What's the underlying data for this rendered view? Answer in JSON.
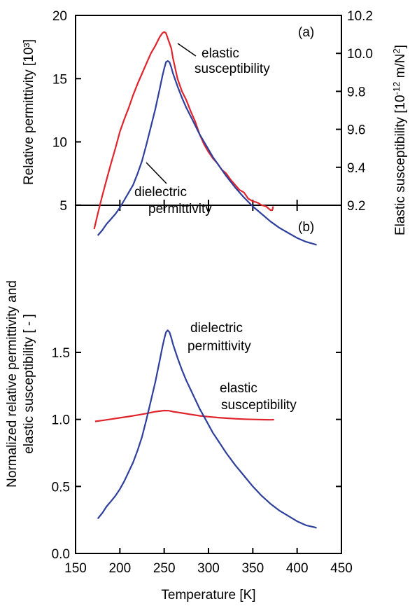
{
  "chart_data": [
    {
      "panel_label": "(a)",
      "type": "line",
      "ylabel_left": "Relative permittivity [10³]",
      "ylabel_right_parts": [
        "Elastic susceptibility [10",
        "-12",
        " m/N",
        "2",
        "]"
      ],
      "ylim_left": [
        0,
        20
      ],
      "ylim_right": [
        9.2,
        10.2
      ],
      "yticks_left": [
        "5",
        "10",
        "15",
        "20"
      ],
      "yticks_right": [
        "9.2",
        "9.4",
        "9.6",
        "9.8",
        "10.0",
        "10.2"
      ],
      "xlim": [
        150,
        450
      ],
      "annotations": [
        {
          "lines": [
            "elastic",
            "susceptibility"
          ]
        },
        {
          "lines": [
            "dielectric",
            "permittivity"
          ]
        }
      ],
      "series": [
        {
          "axis": "left",
          "color": "#e0242c",
          "x": [
            171,
            175,
            180,
            185,
            190,
            195,
            200,
            205,
            210,
            215,
            220,
            225,
            230,
            235,
            240,
            245,
            248,
            250,
            252,
            255,
            258,
            260,
            265,
            270,
            275,
            280,
            285,
            290,
            295,
            300,
            305,
            310,
            315,
            320,
            325,
            330,
            335,
            340,
            345,
            350,
            355,
            360,
            365,
            370,
            372,
            373
          ],
          "y": [
            3.1,
            4.3,
            5.7,
            7.0,
            8.3,
            9.5,
            10.8,
            11.8,
            12.7,
            13.7,
            14.6,
            15.4,
            16.2,
            17.0,
            17.6,
            18.3,
            18.6,
            18.7,
            18.6,
            18.0,
            17.4,
            16.6,
            15.0,
            14.0,
            13.3,
            12.4,
            11.6,
            10.6,
            9.8,
            9.2,
            8.7,
            8.3,
            7.8,
            7.5,
            7.0,
            6.6,
            6.2,
            6.0,
            5.5,
            5.3,
            5.2,
            5.0,
            4.9,
            4.6,
            4.6,
            4.9
          ]
        },
        {
          "axis": "left",
          "color": "#2e3f9c",
          "x": [
            175,
            180,
            185,
            190,
            195,
            200,
            205,
            210,
            215,
            220,
            225,
            230,
            235,
            240,
            245,
            248,
            250,
            252,
            254,
            256,
            258,
            260,
            265,
            270,
            275,
            280,
            285,
            290,
            295,
            300,
            305,
            310,
            320,
            330,
            340,
            350,
            360,
            370,
            380,
            390,
            400,
            410,
            420,
            422
          ],
          "y": [
            2.6,
            3.0,
            3.5,
            3.9,
            4.3,
            4.8,
            5.4,
            6.0,
            6.6,
            7.5,
            8.5,
            9.8,
            11.2,
            12.6,
            14.2,
            15.2,
            15.8,
            16.3,
            16.4,
            16.3,
            15.9,
            15.4,
            14.4,
            13.5,
            12.7,
            12.0,
            11.3,
            10.6,
            10.0,
            9.4,
            8.8,
            8.3,
            7.3,
            6.4,
            5.6,
            4.9,
            4.3,
            3.7,
            3.2,
            2.8,
            2.4,
            2.1,
            1.9,
            1.85
          ]
        }
      ]
    },
    {
      "panel_label": "(b)",
      "type": "line",
      "ylabel_lines": [
        "Normalized relative permittivity and",
        "elastic susceptibility [ - ]"
      ],
      "xlabel": "Temperature [K]",
      "xlim": [
        150,
        450
      ],
      "ylim": [
        0.0,
        2.0
      ],
      "xticks": [
        "150",
        "200",
        "250",
        "300",
        "350",
        "400",
        "450"
      ],
      "yticks": [
        "0.0",
        "0.5",
        "1.0",
        "1.5"
      ],
      "annotations": [
        {
          "lines": [
            "dielectric",
            "permittivity"
          ]
        },
        {
          "lines": [
            "elastic",
            "susceptibility"
          ]
        }
      ],
      "series": [
        {
          "color": "#e0242c",
          "x": [
            172,
            180,
            190,
            200,
            210,
            220,
            230,
            240,
            250,
            255,
            260,
            270,
            280,
            290,
            300,
            310,
            320,
            330,
            340,
            350,
            360,
            370,
            374
          ],
          "y": [
            0.985,
            0.992,
            1.002,
            1.012,
            1.022,
            1.033,
            1.044,
            1.058,
            1.066,
            1.065,
            1.058,
            1.048,
            1.037,
            1.027,
            1.02,
            1.014,
            1.009,
            1.005,
            1.002,
            1.0,
            0.998,
            0.997,
            0.998
          ]
        },
        {
          "color": "#2e3f9c",
          "x": [
            175,
            180,
            185,
            190,
            195,
            200,
            205,
            210,
            215,
            220,
            225,
            230,
            235,
            240,
            245,
            248,
            250,
            252,
            254,
            256,
            258,
            260,
            265,
            270,
            275,
            280,
            285,
            290,
            295,
            300,
            305,
            310,
            320,
            330,
            340,
            350,
            360,
            370,
            380,
            390,
            400,
            410,
            420,
            422
          ],
          "y": [
            0.26,
            0.3,
            0.35,
            0.39,
            0.43,
            0.48,
            0.54,
            0.61,
            0.68,
            0.77,
            0.87,
            1.0,
            1.14,
            1.28,
            1.44,
            1.54,
            1.6,
            1.65,
            1.665,
            1.65,
            1.61,
            1.56,
            1.46,
            1.37,
            1.29,
            1.22,
            1.15,
            1.08,
            1.02,
            0.96,
            0.9,
            0.85,
            0.75,
            0.66,
            0.58,
            0.5,
            0.43,
            0.37,
            0.32,
            0.28,
            0.24,
            0.21,
            0.195,
            0.19
          ]
        }
      ]
    }
  ]
}
